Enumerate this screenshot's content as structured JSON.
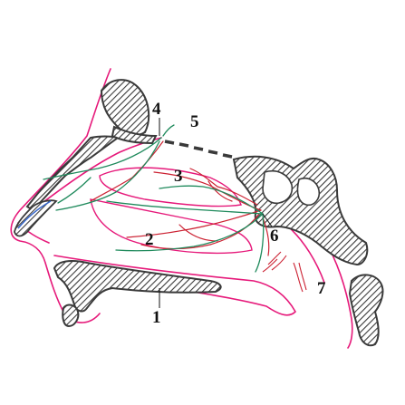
{
  "colors": {
    "outline": "#e6197a",
    "artery": "#cc2233",
    "nerve": "#1f8a5c",
    "bone": "#3a3a3a",
    "background": "#ffffff",
    "label": "#111111"
  },
  "labels": [
    {
      "id": "1",
      "text": "1"
    },
    {
      "id": "2",
      "text": "2"
    },
    {
      "id": "3",
      "text": "3"
    },
    {
      "id": "4",
      "text": "4"
    },
    {
      "id": "5",
      "text": "5"
    },
    {
      "id": "6",
      "text": "6"
    },
    {
      "id": "7",
      "text": "7"
    }
  ]
}
